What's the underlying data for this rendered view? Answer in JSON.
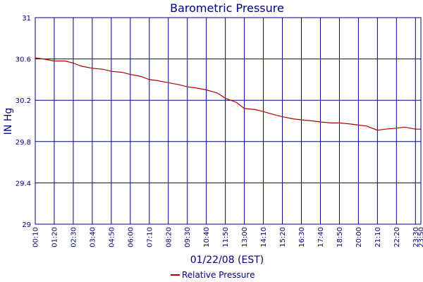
{
  "chart_data": {
    "type": "line",
    "title": "Barometric Pressure",
    "xlabel": "01/22/08 (EST)",
    "ylabel": "IN Hg",
    "ylim": [
      29,
      31
    ],
    "yticks": [
      "29",
      "29.4",
      "29.8",
      "30.2",
      "30.6",
      "31"
    ],
    "ytick_values": [
      29,
      29.4,
      29.8,
      30.2,
      30.6,
      31
    ],
    "xlim": [
      "00:10",
      "23:50"
    ],
    "xticks": [
      "00:10",
      "01:20",
      "02:30",
      "03:40",
      "04:50",
      "06:00",
      "07:10",
      "08:20",
      "09:30",
      "10:40",
      "11:50",
      "13:00",
      "14:10",
      "15:20",
      "16:30",
      "17:40",
      "18:50",
      "20:00",
      "21:10",
      "22:20",
      "23:30",
      "23:50"
    ],
    "grid": true,
    "legend_position": "bottom",
    "colors": {
      "series": "#b00000",
      "grid": "#000080",
      "axis": "#000080",
      "text": "#000080"
    },
    "series": [
      {
        "name": "Relative Pressure",
        "x": [
          "00:10",
          "00:40",
          "01:20",
          "02:00",
          "02:30",
          "03:00",
          "03:40",
          "04:20",
          "04:50",
          "05:30",
          "06:00",
          "06:40",
          "07:10",
          "07:40",
          "08:20",
          "09:00",
          "09:30",
          "10:00",
          "10:40",
          "11:20",
          "11:50",
          "12:30",
          "13:00",
          "13:40",
          "14:10",
          "14:50",
          "15:20",
          "16:00",
          "16:30",
          "17:10",
          "17:40",
          "18:20",
          "18:50",
          "19:30",
          "20:00",
          "20:30",
          "21:10",
          "21:40",
          "22:20",
          "22:50",
          "23:30",
          "23:50"
        ],
        "values": [
          30.61,
          30.6,
          30.58,
          30.58,
          30.56,
          30.53,
          30.51,
          30.5,
          30.48,
          30.47,
          30.45,
          30.43,
          30.4,
          30.39,
          30.37,
          30.35,
          30.33,
          30.32,
          30.3,
          30.27,
          30.22,
          30.18,
          30.12,
          30.11,
          30.09,
          30.06,
          30.04,
          30.02,
          30.01,
          30.0,
          29.99,
          29.98,
          29.98,
          29.97,
          29.96,
          29.95,
          29.91,
          29.92,
          29.93,
          29.94,
          29.92,
          29.92
        ]
      }
    ]
  }
}
